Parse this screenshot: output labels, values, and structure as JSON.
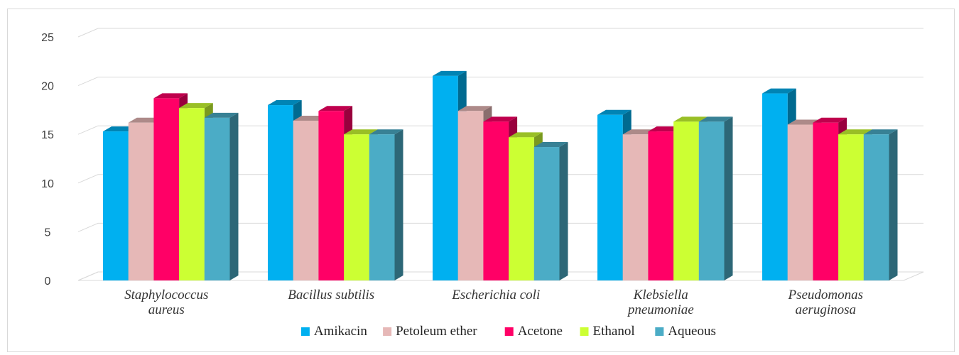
{
  "chart_data": {
    "type": "bar",
    "style": "3d-clustered-column",
    "categories": [
      [
        "Staphylococcus",
        "aureus"
      ],
      [
        "Bacillus subtilis"
      ],
      [
        "Escherichia coli"
      ],
      [
        "Klebsiella",
        "pneumoniae"
      ],
      [
        "Pseudomonas",
        "aeruginosa"
      ]
    ],
    "series": [
      {
        "name": "Amikacin",
        "color": "#00b0f0",
        "values": [
          15.3,
          18.0,
          21.0,
          17.0,
          19.2
        ]
      },
      {
        "name": "Petoleum ether",
        "color": "#e6b8b7",
        "values": [
          16.2,
          16.4,
          17.4,
          15.0,
          16.0
        ]
      },
      {
        "name": "Acetone",
        "color": "#ff0066",
        "values": [
          18.7,
          17.4,
          16.3,
          15.3,
          16.2
        ]
      },
      {
        "name": "Ethanol",
        "color": "#ccff33",
        "values": [
          17.7,
          15.0,
          14.7,
          16.3,
          15.0
        ]
      },
      {
        "name": "Aqueous",
        "color": "#4bacc6",
        "values": [
          16.7,
          15.0,
          13.7,
          16.3,
          15.0
        ]
      }
    ],
    "ylim": [
      0,
      25
    ],
    "yticks": [
      0,
      5,
      10,
      15,
      20,
      25
    ],
    "grid": true,
    "legend_position": "bottom",
    "title": "",
    "xlabel": "",
    "ylabel": ""
  }
}
